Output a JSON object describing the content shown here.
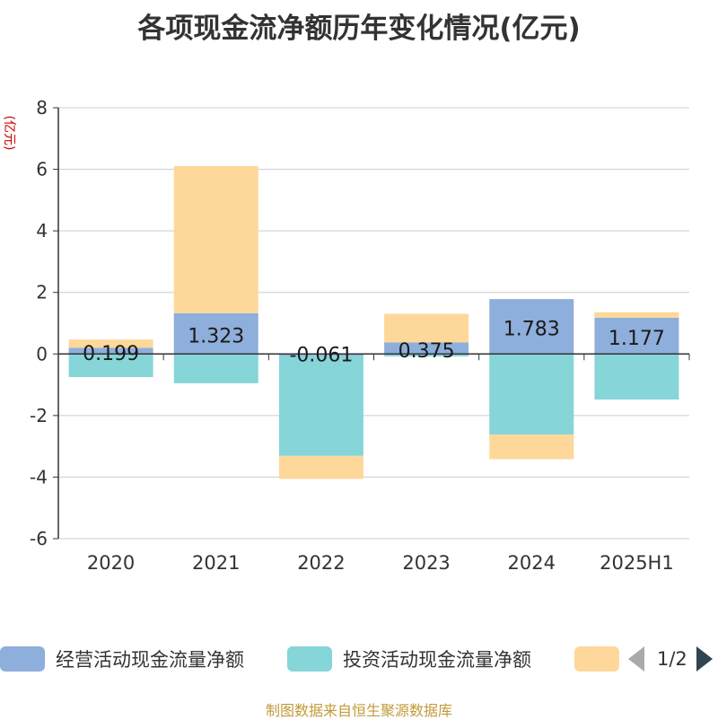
{
  "chart_data": {
    "type": "bar",
    "stacked": true,
    "title": "各项现金流净额历年变化情况(亿元)",
    "ylabel": "(亿元)",
    "categories": [
      "2020",
      "2021",
      "2022",
      "2023",
      "2024",
      "2025H1"
    ],
    "ylim": [
      -6,
      8
    ],
    "yticks": [
      -6,
      -4,
      -2,
      0,
      2,
      4,
      6,
      8
    ],
    "grid": true,
    "series": [
      {
        "name": "经营活动现金流量净额",
        "color": "#8eaedc",
        "values": [
          0.199,
          1.323,
          -0.061,
          0.375,
          1.783,
          1.177
        ],
        "data_labels": [
          "0.199",
          "1.323",
          "-0.061",
          "0.375",
          "1.783",
          "1.177"
        ]
      },
      {
        "name": "投资活动现金流量净额",
        "color": "#86d5d8",
        "values": [
          -0.75,
          -0.95,
          -3.25,
          -0.08,
          -2.62,
          -1.48
        ]
      },
      {
        "name": "",
        "color": "#fdd89a",
        "values": [
          0.27,
          4.78,
          -0.75,
          0.93,
          -0.8,
          0.18
        ]
      }
    ],
    "legend_position": "bottom",
    "legend_page": "1/2"
  },
  "source": "制图数据来自恒生聚源数据库"
}
